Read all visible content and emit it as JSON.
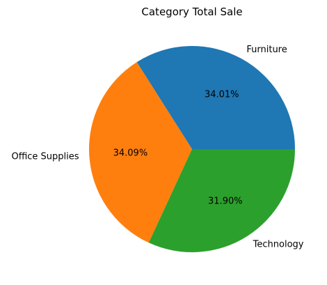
{
  "chart_data": {
    "type": "pie",
    "title": "Category Total Sale",
    "categories": [
      "Furniture",
      "Office Supplies",
      "Technology"
    ],
    "values": [
      34.01,
      34.09,
      31.9
    ],
    "percent_labels": [
      "34.01%",
      "34.09%",
      "31.90%"
    ],
    "colors": [
      "#1f77b4",
      "#ff7f0e",
      "#2ca02c"
    ],
    "start_angle_deg": 0,
    "direction": "counterclockwise"
  }
}
